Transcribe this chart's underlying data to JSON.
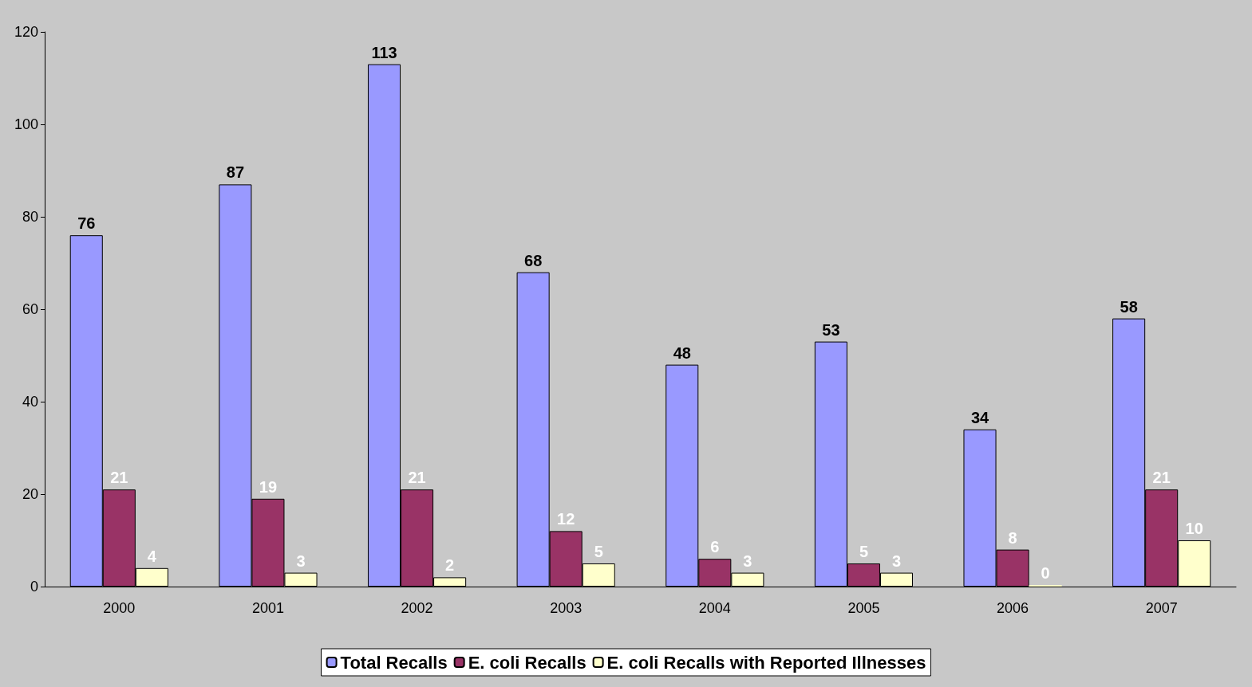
{
  "chart_data": {
    "type": "bar",
    "categories": [
      "2000",
      "2001",
      "2002",
      "2003",
      "2004",
      "2005",
      "2006",
      "2007"
    ],
    "series": [
      {
        "name": "Total Recalls",
        "color": "#9999ff",
        "values": [
          76,
          87,
          113,
          68,
          48,
          53,
          34,
          58
        ]
      },
      {
        "name": "E. coli Recalls",
        "color": "#993366",
        "values": [
          21,
          19,
          21,
          12,
          6,
          5,
          8,
          21
        ]
      },
      {
        "name": "E. coli Recalls with Reported Illnesses",
        "color": "#ffffcc",
        "values": [
          4,
          3,
          2,
          5,
          3,
          3,
          0,
          10
        ]
      }
    ],
    "ylim": [
      0,
      120
    ],
    "yticks": [
      0,
      20,
      40,
      60,
      80,
      100,
      120
    ],
    "grid": false,
    "legend": "bottom",
    "data_labels": true
  }
}
